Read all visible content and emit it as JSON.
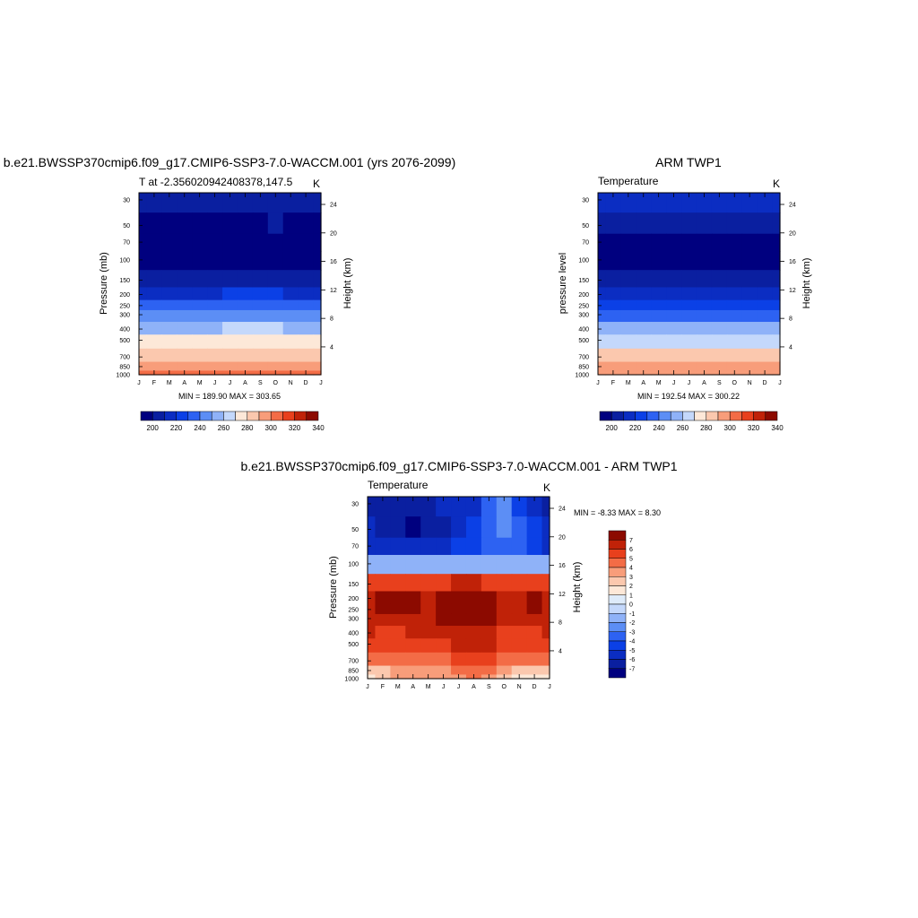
{
  "panels": {
    "model": {
      "title": "b.e21.BWSSP370cmip6.f09_g17.CMIP6-SSP3-7.0-WACCM.001 (yrs 2076-2099)",
      "subtitle_left": "T at -2.356020942408378,147.5",
      "subtitle_right": "K",
      "ylabel_left": "Pressure (mb)",
      "ylabel_right": "Height (km)",
      "minmax": "MIN = 189.90 MAX = 303.65",
      "colorbar_ticks": [
        "200",
        "220",
        "240",
        "260",
        "280",
        "300",
        "320",
        "340"
      ]
    },
    "obs": {
      "title": "ARM TWP1",
      "subtitle_left": "Temperature",
      "subtitle_right": "K",
      "ylabel_left": "pressure level",
      "ylabel_right": "Height (km)",
      "minmax": "MIN = 192.54 MAX = 300.22",
      "colorbar_ticks": [
        "200",
        "220",
        "240",
        "260",
        "280",
        "300",
        "320",
        "340"
      ]
    },
    "diff": {
      "title": "b.e21.BWSSP370cmip6.f09_g17.CMIP6-SSP3-7.0-WACCM.001 - ARM TWP1",
      "subtitle_left": "Temperature",
      "subtitle_right": "K",
      "ylabel_left": "Pressure (mb)",
      "ylabel_right": "Height (km)",
      "minmax": "MIN =  -8.33 MAX =   8.30",
      "colorbar_ticks": [
        "7",
        "6",
        "5",
        "4",
        "3",
        "2",
        "1",
        "0",
        "-1",
        "-2",
        "-3",
        "-4",
        "-5",
        "-6",
        "-7"
      ]
    }
  },
  "axes": {
    "month_ticks": [
      "J",
      "F",
      "M",
      "A",
      "M",
      "J",
      "J",
      "A",
      "S",
      "O",
      "N",
      "D",
      "J"
    ],
    "pressure_ticks": [
      "30",
      "50",
      "70",
      "100",
      "150",
      "200",
      "250",
      "300",
      "400",
      "500",
      "700",
      "850",
      "1000"
    ],
    "height_ticks": [
      "24",
      "20",
      "16",
      "12",
      "8",
      "4"
    ]
  },
  "colors": {
    "temp_palette": [
      "#00007f",
      "#0a1fa0",
      "#0b2dc2",
      "#0b40e6",
      "#2d62f2",
      "#5c8ef5",
      "#8fb2f8",
      "#c4d8fb",
      "#fde8d8",
      "#fbc8ae",
      "#f89d7a",
      "#f36c46",
      "#e8401d",
      "#c02208",
      "#8c0a00"
    ],
    "diff_palette": [
      "#00007f",
      "#0a1fa0",
      "#0b2dc2",
      "#0b40e6",
      "#2d62f2",
      "#5c8ef5",
      "#8fb2f8",
      "#c4d8fb",
      "#deebfa",
      "#fde8d8",
      "#fbc8ae",
      "#f89d7a",
      "#f36c46",
      "#e8401d",
      "#c02208",
      "#8c0a00"
    ]
  },
  "chart_data": [
    {
      "type": "heatmap",
      "title": "b.e21.BWSSP370cmip6.f09_g17.CMIP6-SSP3-7.0-WACCM.001 (yrs 2076-2099)",
      "subtitle": "T at -2.356020942408378,147.5",
      "units": "K",
      "xlabel": "",
      "ylabel": "Pressure (mb)",
      "y2label": "Height (km)",
      "x": [
        "J",
        "F",
        "M",
        "A",
        "M",
        "J",
        "J",
        "A",
        "S",
        "O",
        "N",
        "D",
        "J"
      ],
      "y_levels": [
        30,
        50,
        70,
        100,
        150,
        200,
        250,
        300,
        400,
        500,
        700,
        850,
        1000
      ],
      "y_scale": "log",
      "z_min": 189.9,
      "z_max": 303.65,
      "levels": [
        200,
        210,
        220,
        230,
        240,
        250,
        260,
        270,
        280,
        290,
        300,
        310,
        320,
        330,
        340
      ],
      "values": [
        [
          206,
          206,
          205,
          205,
          205,
          205,
          206,
          206,
          206,
          205,
          204,
          205,
          206
        ],
        [
          197,
          197,
          196,
          195,
          196,
          197,
          198,
          199,
          199,
          200,
          198,
          197,
          197
        ],
        [
          193,
          193,
          193,
          193,
          193,
          194,
          195,
          196,
          197,
          197,
          195,
          194,
          193
        ],
        [
          192,
          192,
          192,
          192,
          192,
          192,
          193,
          193,
          193,
          193,
          193,
          192,
          192
        ],
        [
          205,
          205,
          205,
          205,
          205,
          205,
          205,
          206,
          206,
          206,
          205,
          205,
          205
        ],
        [
          219,
          219,
          219,
          219,
          219,
          219,
          220,
          220,
          220,
          220,
          219,
          219,
          219
        ],
        [
          231,
          231,
          231,
          231,
          231,
          231,
          232,
          232,
          232,
          232,
          231,
          231,
          231
        ],
        [
          242,
          242,
          242,
          242,
          242,
          242,
          243,
          243,
          243,
          243,
          242,
          242,
          242
        ],
        [
          259,
          259,
          259,
          259,
          259,
          259,
          260,
          260,
          260,
          260,
          259,
          259,
          259
        ],
        [
          272,
          272,
          272,
          272,
          272,
          272,
          273,
          273,
          273,
          273,
          272,
          272,
          272
        ],
        [
          286,
          286,
          286,
          286,
          286,
          286,
          287,
          287,
          287,
          287,
          286,
          286,
          286
        ],
        [
          295,
          295,
          295,
          295,
          295,
          295,
          296,
          296,
          296,
          296,
          295,
          295,
          295
        ],
        [
          303,
          303,
          303,
          303,
          303,
          303,
          303,
          303,
          303,
          303,
          303,
          303,
          303
        ]
      ]
    },
    {
      "type": "heatmap",
      "title": "ARM TWP1",
      "subtitle": "Temperature",
      "units": "K",
      "xlabel": "",
      "ylabel": "pressure level",
      "y2label": "Height (km)",
      "x": [
        "J",
        "F",
        "M",
        "A",
        "M",
        "J",
        "J",
        "A",
        "S",
        "O",
        "N",
        "D",
        "J"
      ],
      "y_levels": [
        30,
        50,
        70,
        100,
        150,
        200,
        250,
        300,
        400,
        500,
        700,
        850,
        1000
      ],
      "y_scale": "log",
      "z_min": 192.54,
      "z_max": 300.22,
      "levels": [
        200,
        210,
        220,
        230,
        240,
        250,
        260,
        270,
        280,
        290,
        300,
        310,
        320,
        330,
        340
      ],
      "values": [
        [
          213,
          213,
          213,
          212,
          212,
          212,
          212,
          212,
          212,
          212,
          213,
          213,
          213
        ],
        [
          206,
          206,
          206,
          206,
          206,
          205,
          205,
          205,
          205,
          206,
          206,
          206,
          206
        ],
        [
          198,
          198,
          198,
          198,
          197,
          197,
          196,
          195,
          196,
          197,
          198,
          198,
          198
        ],
        [
          195,
          195,
          195,
          195,
          195,
          194,
          194,
          193,
          194,
          195,
          195,
          195,
          195
        ],
        [
          207,
          207,
          207,
          207,
          207,
          207,
          207,
          207,
          207,
          207,
          207,
          207,
          207
        ],
        [
          219,
          219,
          219,
          219,
          219,
          219,
          219,
          219,
          219,
          219,
          219,
          219,
          219
        ],
        [
          229,
          229,
          229,
          229,
          229,
          229,
          229,
          229,
          229,
          229,
          229,
          229,
          229
        ],
        [
          239,
          239,
          239,
          239,
          239,
          239,
          239,
          239,
          239,
          239,
          239,
          239,
          239
        ],
        [
          256,
          256,
          256,
          256,
          256,
          256,
          256,
          256,
          256,
          256,
          256,
          256,
          256
        ],
        [
          268,
          268,
          268,
          268,
          268,
          269,
          269,
          269,
          269,
          268,
          268,
          268,
          268
        ],
        [
          281,
          281,
          281,
          281,
          281,
          281,
          282,
          282,
          281,
          281,
          281,
          281,
          281
        ],
        [
          291,
          291,
          291,
          291,
          291,
          291,
          291,
          291,
          291,
          291,
          291,
          291,
          291
        ],
        [
          299,
          299,
          299,
          299,
          299,
          299,
          299,
          299,
          299,
          299,
          299,
          299,
          299
        ]
      ]
    },
    {
      "type": "heatmap",
      "title": "b.e21.BWSSP370cmip6.f09_g17.CMIP6-SSP3-7.0-WACCM.001 - ARM TWP1",
      "subtitle": "Temperature",
      "units": "K",
      "xlabel": "",
      "ylabel": "Pressure (mb)",
      "y2label": "Height (km)",
      "x": [
        "J",
        "F",
        "M",
        "A",
        "M",
        "J",
        "J",
        "A",
        "S",
        "O",
        "N",
        "D",
        "J"
      ],
      "y_levels": [
        30,
        50,
        70,
        100,
        150,
        200,
        250,
        300,
        400,
        500,
        700,
        850,
        1000
      ],
      "y_scale": "log",
      "z_min": -8.33,
      "z_max": 8.3,
      "levels": [
        -7,
        -6,
        -5,
        -4,
        -3,
        -2,
        -1,
        0,
        1,
        2,
        3,
        4,
        5,
        6,
        7
      ],
      "values": [
        [
          -6.5,
          -6.5,
          -7.0,
          -7.0,
          -6.5,
          -6.0,
          -6.0,
          -5.5,
          -4.0,
          -3.0,
          -4.5,
          -5.5,
          -6.5
        ],
        [
          -6.0,
          -6.5,
          -7.0,
          -7.5,
          -7.0,
          -6.5,
          -6.0,
          -5.0,
          -4.0,
          -3.0,
          -3.5,
          -5.0,
          -6.0
        ],
        [
          -5.5,
          -5.5,
          -5.5,
          -6.0,
          -6.0,
          -5.5,
          -5.0,
          -4.5,
          -4.0,
          -3.5,
          -3.5,
          -4.5,
          -5.5
        ],
        [
          -2.0,
          -2.0,
          -2.0,
          -2.0,
          -2.0,
          -2.0,
          -1.5,
          -1.5,
          -1.5,
          -1.5,
          -1.5,
          -2.0,
          -2.0
        ],
        [
          5.0,
          5.0,
          5.0,
          5.0,
          5.0,
          5.5,
          6.0,
          6.0,
          5.5,
          5.0,
          5.0,
          5.0,
          5.0
        ],
        [
          6.5,
          7.5,
          7.5,
          7.5,
          6.5,
          7.5,
          8.0,
          8.0,
          7.5,
          6.5,
          6.5,
          7.5,
          6.5
        ],
        [
          6.5,
          7.0,
          7.0,
          7.0,
          6.5,
          7.5,
          8.0,
          8.0,
          7.5,
          6.5,
          6.5,
          7.0,
          6.5
        ],
        [
          6.0,
          6.0,
          6.0,
          6.5,
          6.5,
          7.0,
          7.5,
          7.5,
          7.0,
          6.0,
          6.0,
          6.5,
          6.0
        ],
        [
          6.0,
          5.5,
          5.5,
          6.0,
          6.0,
          6.0,
          6.5,
          6.5,
          6.0,
          5.5,
          5.0,
          5.5,
          6.0
        ],
        [
          5.5,
          5.5,
          5.5,
          5.5,
          5.5,
          5.5,
          6.0,
          6.0,
          6.0,
          5.0,
          5.5,
          5.5,
          5.5
        ],
        [
          4.5,
          4.5,
          4.5,
          4.5,
          4.5,
          4.5,
          5.0,
          5.0,
          5.0,
          4.5,
          4.5,
          4.5,
          4.5
        ],
        [
          2.0,
          2.5,
          3.0,
          3.5,
          3.5,
          3.5,
          4.0,
          4.0,
          4.0,
          3.0,
          2.0,
          2.0,
          2.0
        ],
        [
          1.5,
          2.0,
          3.0,
          3.5,
          3.5,
          3.0,
          3.5,
          4.0,
          3.5,
          2.0,
          1.5,
          1.0,
          1.5
        ]
      ]
    }
  ]
}
